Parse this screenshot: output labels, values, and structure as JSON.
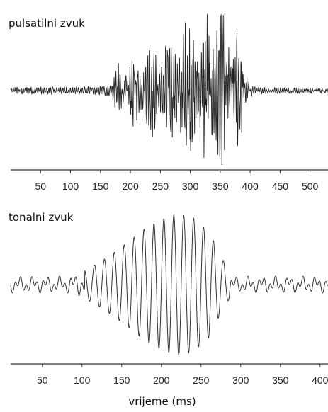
{
  "chart_data": [
    {
      "type": "line",
      "title": "pulsatilni zvuk",
      "xlabel": "",
      "ylabel": "",
      "xlim": [
        0,
        530
      ],
      "x_ticks": [
        50,
        100,
        150,
        200,
        250,
        300,
        350,
        400,
        450,
        500
      ],
      "grid": false,
      "series": [
        {
          "envelope_x": [
            0,
            150,
            170,
            180,
            195,
            205,
            220,
            235,
            250,
            265,
            280,
            295,
            310,
            325,
            340,
            355,
            370,
            380,
            390,
            400,
            410,
            530
          ],
          "envelope_amplitude": [
            0.04,
            0.05,
            0.08,
            0.4,
            0.15,
            0.45,
            0.2,
            0.6,
            0.25,
            0.75,
            0.35,
            0.95,
            0.5,
            1.0,
            0.6,
            1.0,
            0.55,
            0.85,
            0.25,
            0.08,
            0.04,
            0.03
          ]
        }
      ]
    },
    {
      "type": "line",
      "title": "tonalni zvuk",
      "xlabel": "vrijeme (ms)",
      "ylabel": "",
      "xlim": [
        10,
        410
      ],
      "x_ticks": [
        50,
        100,
        150,
        200,
        250,
        300,
        350,
        400
      ],
      "grid": false,
      "series": [
        {
          "envelope_x": [
            10,
            80,
            100,
            120,
            140,
            160,
            180,
            200,
            220,
            240,
            260,
            275,
            290,
            410
          ],
          "envelope_amplitude": [
            0.12,
            0.12,
            0.18,
            0.3,
            0.45,
            0.62,
            0.8,
            0.92,
            1.0,
            0.95,
            0.75,
            0.4,
            0.12,
            0.12
          ]
        }
      ]
    }
  ]
}
